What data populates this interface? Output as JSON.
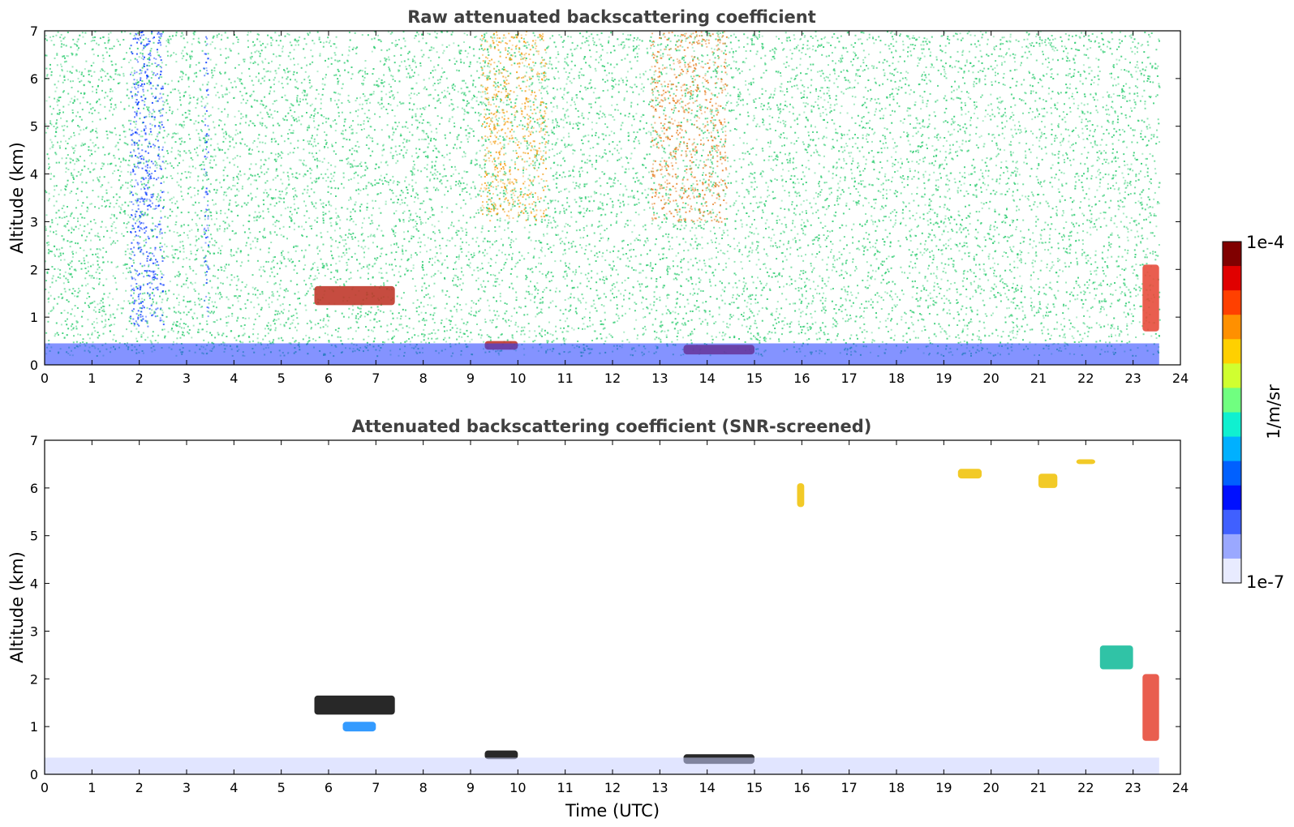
{
  "chart_data": [
    {
      "type": "heatmap",
      "title": "Raw attenuated backscattering coefficient",
      "ylabel": "Altitude (km)",
      "xlabel": "",
      "xlim": [
        0,
        24
      ],
      "ylim": [
        0,
        7
      ],
      "xticks": [
        "0",
        "1",
        "2",
        "3",
        "4",
        "5",
        "6",
        "7",
        "8",
        "9",
        "10",
        "11",
        "12",
        "13",
        "14",
        "15",
        "16",
        "17",
        "18",
        "19",
        "20",
        "21",
        "22",
        "23",
        "24"
      ],
      "yticks": [
        "0",
        "1",
        "2",
        "3",
        "4",
        "5",
        "6",
        "7"
      ],
      "features": [
        {
          "kind": "noise",
          "t0": 0,
          "t1": 23.55,
          "z0": 0.2,
          "z1": 7,
          "color": "#2ecc71",
          "level": 0.45
        },
        {
          "kind": "noise",
          "t0": 9.2,
          "t1": 10.6,
          "z0": 3.0,
          "z1": 7,
          "color": "#f39c12",
          "level": 0.6
        },
        {
          "kind": "noise",
          "t0": 12.8,
          "t1": 14.4,
          "z0": 3.0,
          "z1": 7,
          "color": "#e67e22",
          "level": 0.6
        },
        {
          "kind": "noise",
          "t0": 1.8,
          "t1": 2.5,
          "z0": 0.8,
          "z1": 7,
          "color": "#0a3cff",
          "level": 0.7
        },
        {
          "kind": "noise",
          "t0": 3.35,
          "t1": 3.45,
          "z0": 0.8,
          "z1": 7,
          "color": "#0a3cff",
          "level": 0.7
        },
        {
          "kind": "layer",
          "t0": 5.7,
          "t1": 7.4,
          "z0": 1.25,
          "z1": 1.65,
          "color": "#c0392b"
        },
        {
          "kind": "layer",
          "t0": 9.3,
          "t1": 10.0,
          "z0": 0.32,
          "z1": 0.5,
          "color": "#c0392b"
        },
        {
          "kind": "layer",
          "t0": 13.5,
          "t1": 15.0,
          "z0": 0.22,
          "z1": 0.42,
          "color": "#c0392b"
        },
        {
          "kind": "layer",
          "t0": 23.2,
          "t1": 23.55,
          "z0": 0.7,
          "z1": 2.1,
          "color": "#e74c3c"
        },
        {
          "kind": "boundary",
          "t0": 0,
          "t1": 23.55,
          "z0": 0,
          "z1": 0.45,
          "color": "#1f3bff"
        }
      ]
    },
    {
      "type": "heatmap",
      "title": "Attenuated backscattering coefficient (SNR-screened)",
      "ylabel": "Altitude (km)",
      "xlabel": "Time (UTC)",
      "xlim": [
        0,
        24
      ],
      "ylim": [
        0,
        7
      ],
      "xticks": [
        "0",
        "1",
        "2",
        "3",
        "4",
        "5",
        "6",
        "7",
        "8",
        "9",
        "10",
        "11",
        "12",
        "13",
        "14",
        "15",
        "16",
        "17",
        "18",
        "19",
        "20",
        "21",
        "22",
        "23",
        "24"
      ],
      "yticks": [
        "0",
        "1",
        "2",
        "3",
        "4",
        "5",
        "6",
        "7"
      ],
      "features": [
        {
          "kind": "layer",
          "t0": 5.7,
          "t1": 7.4,
          "z0": 1.25,
          "z1": 1.65,
          "color": "#111111"
        },
        {
          "kind": "layer",
          "t0": 9.3,
          "t1": 10.0,
          "z0": 0.32,
          "z1": 0.5,
          "color": "#111111"
        },
        {
          "kind": "layer",
          "t0": 13.5,
          "t1": 15.0,
          "z0": 0.22,
          "z1": 0.42,
          "color": "#111111"
        },
        {
          "kind": "layer",
          "t0": 23.2,
          "t1": 23.55,
          "z0": 0.7,
          "z1": 2.1,
          "color": "#e74c3c"
        },
        {
          "kind": "layer",
          "t0": 22.3,
          "t1": 23.0,
          "z0": 2.2,
          "z1": 2.7,
          "color": "#1abc9c"
        },
        {
          "kind": "layer",
          "t0": 19.3,
          "t1": 19.8,
          "z0": 6.2,
          "z1": 6.4,
          "color": "#f1c40f"
        },
        {
          "kind": "layer",
          "t0": 21.0,
          "t1": 21.4,
          "z0": 6.0,
          "z1": 6.3,
          "color": "#f1c40f"
        },
        {
          "kind": "layer",
          "t0": 21.8,
          "t1": 22.2,
          "z0": 6.5,
          "z1": 6.6,
          "color": "#f1c40f"
        },
        {
          "kind": "layer",
          "t0": 15.9,
          "t1": 16.05,
          "z0": 5.6,
          "z1": 6.1,
          "color": "#f1c40f"
        },
        {
          "kind": "layer",
          "t0": 6.3,
          "t1": 7.0,
          "z0": 0.9,
          "z1": 1.1,
          "color": "#1e90ff"
        },
        {
          "kind": "boundary",
          "t0": 0,
          "t1": 23.55,
          "z0": 0,
          "z1": 0.35,
          "color": "#c8d0ff"
        }
      ]
    }
  ],
  "colorbar": {
    "label": "1/m/sr",
    "max_label": "1e-4",
    "min_label": "1e-7",
    "colors": [
      "#800000",
      "#e00000",
      "#ff4000",
      "#ff9000",
      "#ffd000",
      "#d0ff30",
      "#70ff80",
      "#10f0d0",
      "#00b0ff",
      "#0060ff",
      "#0010ff",
      "#4060ff",
      "#9aa8ff",
      "#e8ebff"
    ]
  }
}
